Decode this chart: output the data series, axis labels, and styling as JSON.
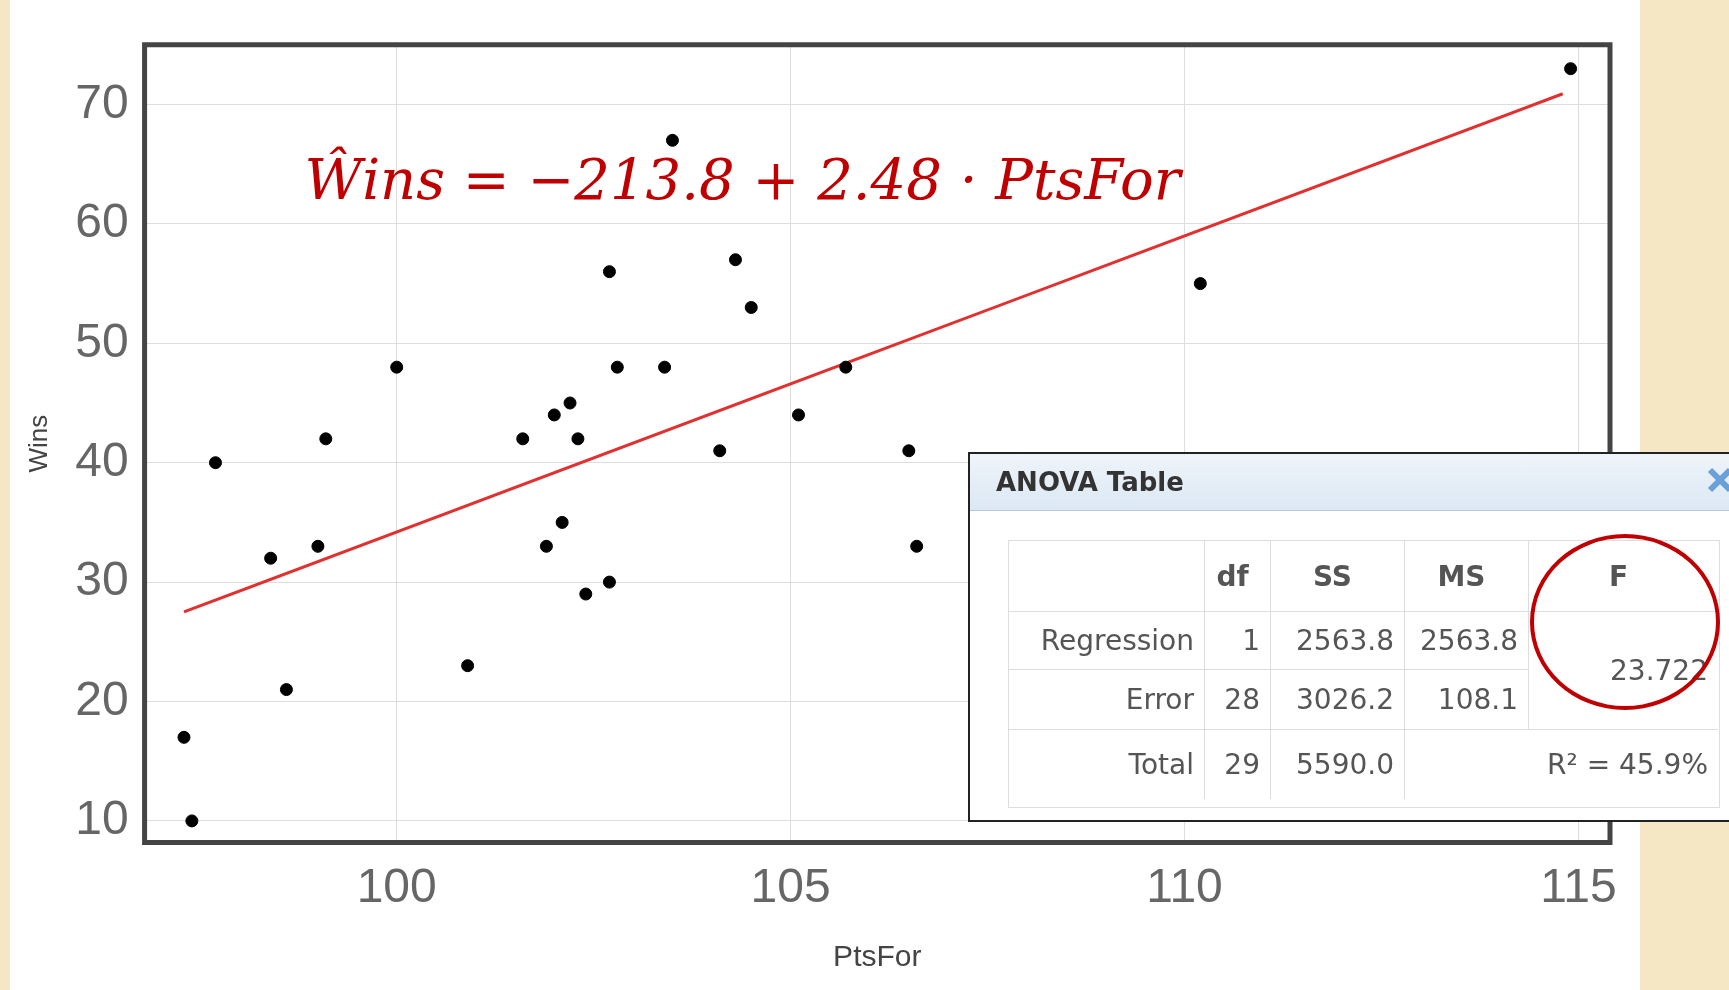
{
  "chart_data": [
    {
      "type": "scatter",
      "xlabel": "PtsFor",
      "ylabel": "Wins",
      "xlim": [
        96.8,
        115.4
      ],
      "ylim": [
        8.2,
        75
      ],
      "xticks": [
        100,
        105,
        110,
        115
      ],
      "yticks": [
        10,
        20,
        30,
        40,
        50,
        60,
        70
      ],
      "grid": true,
      "marker": "circle",
      "annotations": [
        "Ŵins = −213.8 + 2.48 · PtsFor"
      ],
      "series": [
        {
          "color": "#000000",
          "x": [
            97.3,
            97.4,
            97.7,
            98.4,
            98.6,
            99.0,
            99.1,
            100.0,
            100.9,
            101.6,
            101.9,
            102.0,
            102.1,
            102.2,
            102.3,
            102.4,
            102.7,
            102.7,
            102.8,
            103.4,
            103.5,
            104.1,
            104.3,
            104.5,
            105.1,
            105.7,
            106.5,
            106.6,
            110.2,
            114.9
          ],
          "values": [
            17,
            10,
            40,
            32,
            21,
            33,
            42,
            48,
            23,
            42,
            33,
            44,
            35,
            45,
            42,
            29,
            56,
            30,
            48,
            48,
            67,
            41,
            57,
            53,
            44,
            48,
            41,
            33,
            55,
            73
          ]
        },
        {
          "type": "line",
          "color": "#e03030",
          "marker": "none",
          "x": [
            97.3,
            114.8
          ],
          "values": [
            27.5,
            70.9
          ]
        }
      ]
    },
    {
      "type": "other",
      "title": "ANOVA Table",
      "annotations": [
        "df",
        "SS",
        "MS",
        "F",
        "Regression",
        "1",
        "2563.8",
        "2563.8",
        "23.722",
        "Error",
        "28",
        "3026.2",
        "108.1",
        "Total",
        "29",
        "5590.0",
        "R² = 45.9%"
      ]
    }
  ]
}
